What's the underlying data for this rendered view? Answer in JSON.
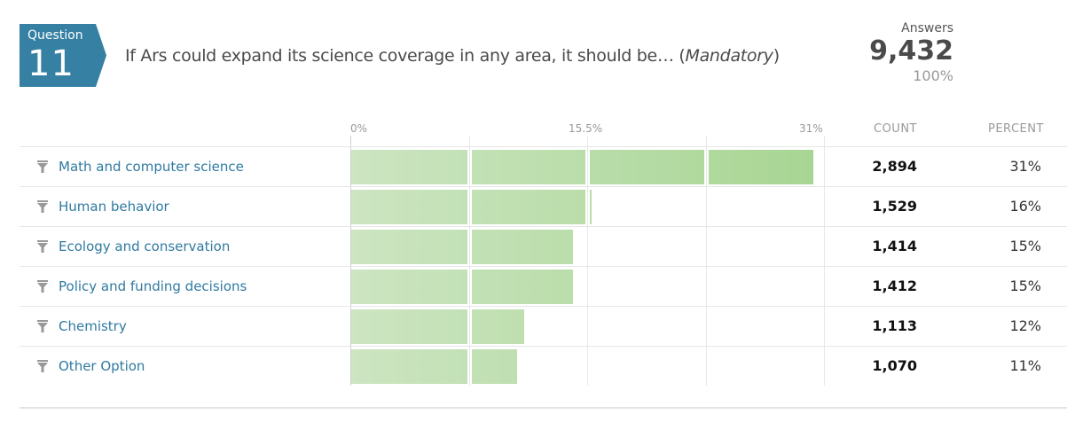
{
  "question": {
    "label": "Question",
    "number": "11",
    "title_main": "If Ars could expand its science coverage in any area, it should be… (",
    "title_em": "Mandatory",
    "title_end": ")",
    "badge_color": "#3580a3"
  },
  "answers": {
    "label": "Answers",
    "count": "9,432",
    "percent": "100%"
  },
  "axis": {
    "ticks": [
      "0%",
      "15.5%",
      "31%"
    ]
  },
  "columns": {
    "count": "COUNT",
    "percent": "PERCENT"
  },
  "rows": [
    {
      "label": "Math and computer science",
      "count": "2,894",
      "percent": "31%"
    },
    {
      "label": "Human behavior",
      "count": "1,529",
      "percent": "16%"
    },
    {
      "label": "Ecology and conservation",
      "count": "1,414",
      "percent": "15%"
    },
    {
      "label": "Policy and funding decisions",
      "count": "1,412",
      "percent": "15%"
    },
    {
      "label": "Chemistry",
      "count": "1,113",
      "percent": "12%"
    },
    {
      "label": "Other Option",
      "count": "1,070",
      "percent": "11%"
    }
  ],
  "colors": {
    "bar_light": "#cde5c2",
    "bar_dark": "#a6d592",
    "link": "#2f7aa1",
    "icon": "#999999"
  },
  "chart_data": {
    "type": "bar",
    "orientation": "horizontal",
    "title": "If Ars could expand its science coverage in any area, it should be… (Mandatory)",
    "categories": [
      "Math and computer science",
      "Human behavior",
      "Ecology and conservation",
      "Policy and funding decisions",
      "Chemistry",
      "Other Option"
    ],
    "series": [
      {
        "name": "Count",
        "values": [
          2894,
          1529,
          1414,
          1412,
          1113,
          1070
        ]
      },
      {
        "name": "Percent",
        "values": [
          31,
          16,
          15,
          15,
          12,
          11
        ]
      }
    ],
    "xlabel": "",
    "ylabel": "",
    "xlim": [
      0,
      31
    ],
    "xticks": [
      "0%",
      "15.5%",
      "31%"
    ],
    "total_answers": 9432,
    "grid": true,
    "legend": "none"
  }
}
